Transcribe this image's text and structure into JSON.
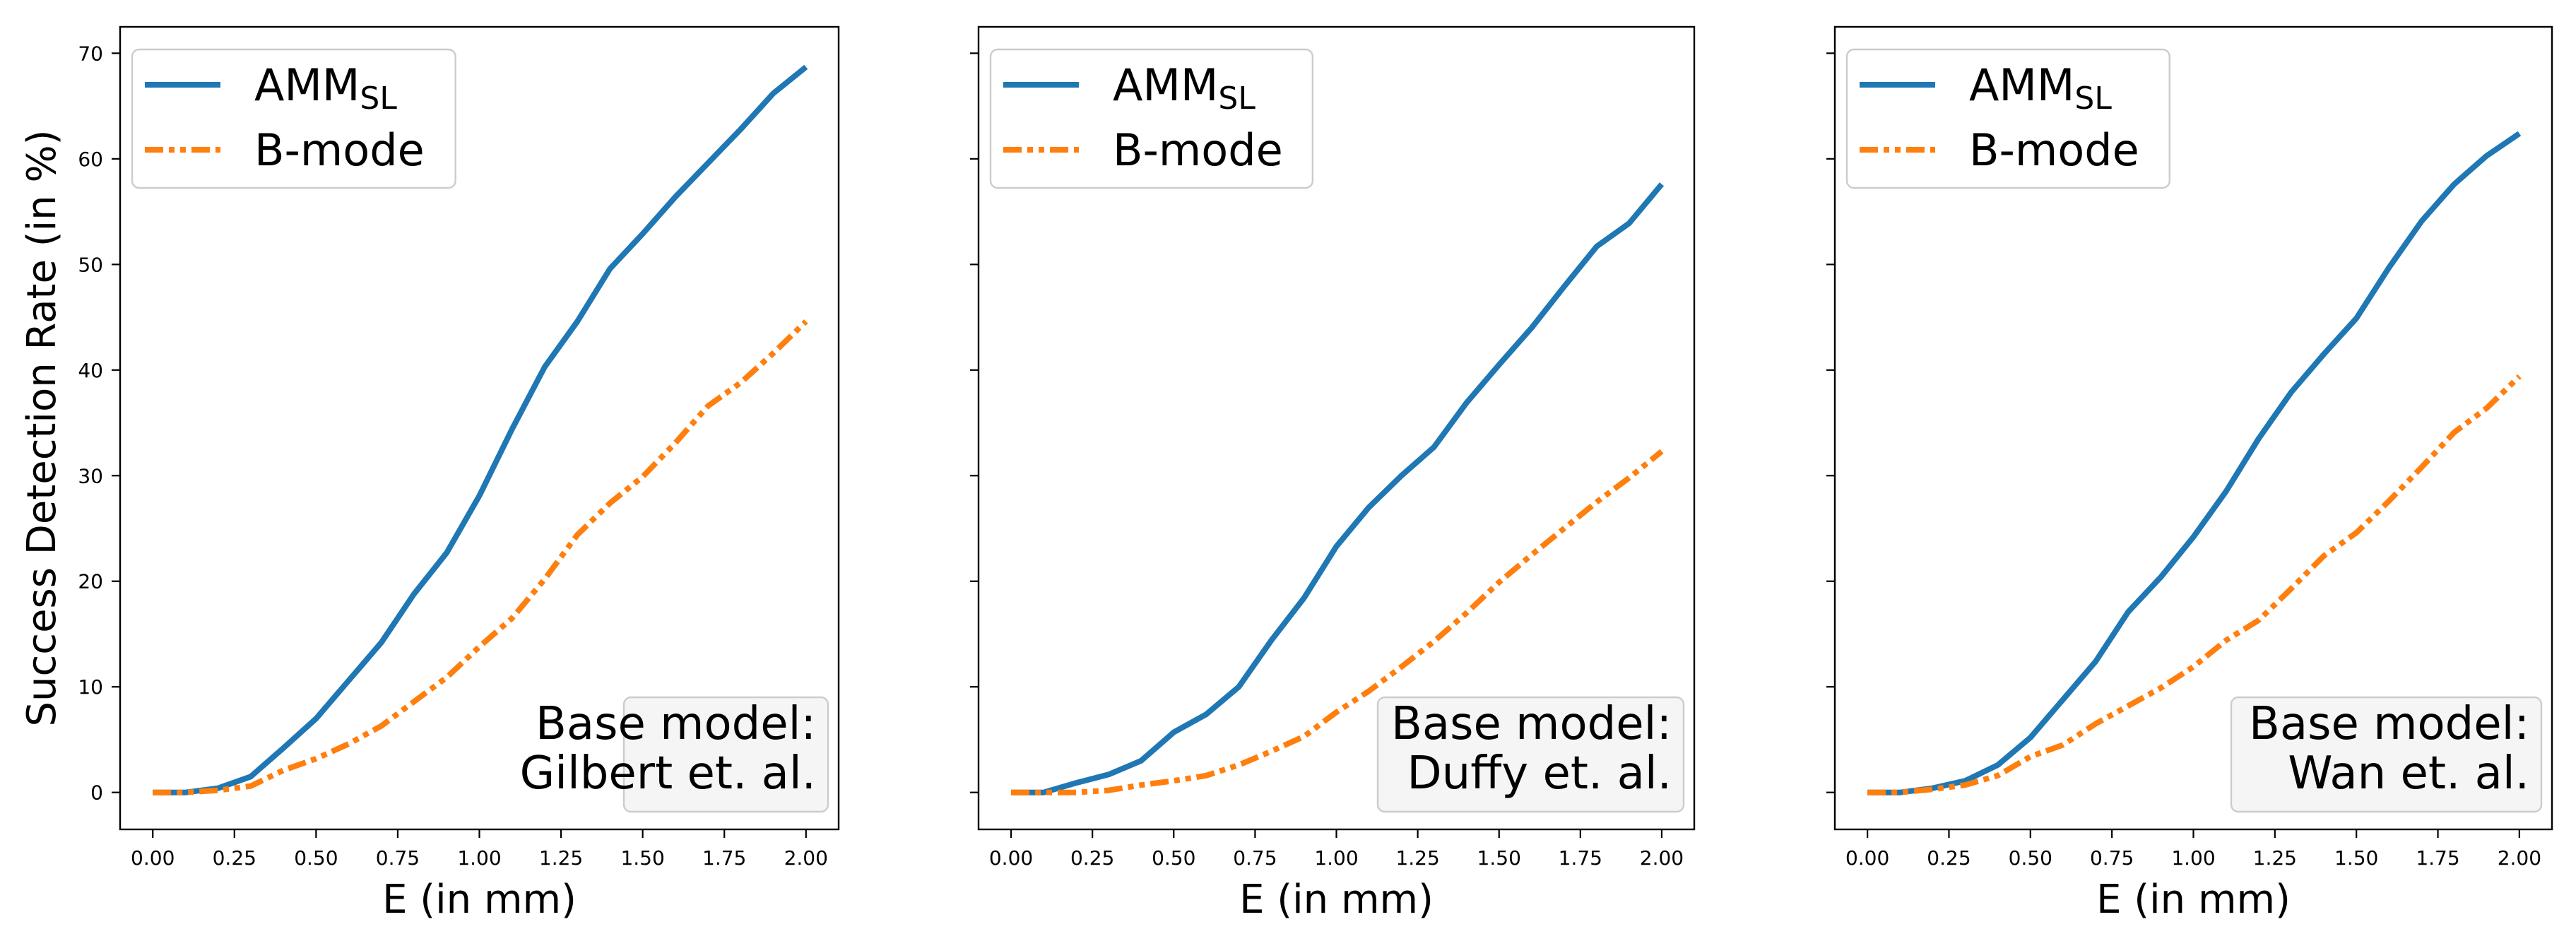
{
  "colors": {
    "amm": "#1f77b4",
    "bmode": "#ff7f0e"
  },
  "chart_data": [
    {
      "type": "line",
      "xlabel": "E (in mm)",
      "ylabel": "Success Detection Rate (in %)",
      "xlim": [
        -0.1,
        2.1
      ],
      "ylim": [
        -3.5,
        72.5
      ],
      "xticks": [
        0,
        0.25,
        0.5,
        0.75,
        1,
        1.25,
        1.5,
        1.75,
        2
      ],
      "xtick_labels": [
        "0.00",
        "0.25",
        "0.50",
        "0.75",
        "1.00",
        "1.25",
        "1.50",
        "1.75",
        "2.00"
      ],
      "yticks": [
        0,
        10,
        20,
        30,
        40,
        50,
        60,
        70
      ],
      "ytick_labels": [
        "0",
        "10",
        "20",
        "30",
        "40",
        "50",
        "60",
        "70"
      ],
      "legend_position": "top-left",
      "annotation": {
        "line1": "Base model:",
        "line2": "Gilbert et. al.",
        "position": "bottom-right"
      },
      "x": [
        0,
        0.1,
        0.2,
        0.3,
        0.4,
        0.5,
        0.6,
        0.7,
        0.8,
        0.9,
        1.0,
        1.1,
        1.2,
        1.3,
        1.4,
        1.5,
        1.6,
        1.7,
        1.8,
        1.9,
        2.0
      ],
      "series": [
        {
          "name": "AMM",
          "name_sub": "SL",
          "style": "solid",
          "values": [
            0,
            0,
            0.4,
            1.5,
            4.2,
            7,
            10.6,
            14.2,
            18.8,
            22.7,
            28.1,
            34.4,
            40.3,
            44.6,
            49.6,
            52.9,
            56.4,
            59.6,
            62.8,
            66.2,
            68.7
          ]
        },
        {
          "name": "B-mode",
          "name_sub": "",
          "style": "dashdot",
          "values": [
            0,
            0,
            0.2,
            0.6,
            2.1,
            3.2,
            4.6,
            6.3,
            8.6,
            10.9,
            13.8,
            16.5,
            20.2,
            24.4,
            27.4,
            29.9,
            33.1,
            36.6,
            38.8,
            41.6,
            44.6
          ]
        }
      ]
    },
    {
      "type": "line",
      "xlabel": "E (in mm)",
      "ylabel": "",
      "xlim": [
        -0.1,
        2.1
      ],
      "ylim": [
        -3.5,
        72.5
      ],
      "xticks": [
        0,
        0.25,
        0.5,
        0.75,
        1,
        1.25,
        1.5,
        1.75,
        2
      ],
      "xtick_labels": [
        "0.00",
        "0.25",
        "0.50",
        "0.75",
        "1.00",
        "1.25",
        "1.50",
        "1.75",
        "2.00"
      ],
      "yticks": [
        0,
        10,
        20,
        30,
        40,
        50,
        60,
        70
      ],
      "ytick_labels": [],
      "legend_position": "top-left",
      "annotation": {
        "line1": "Base model:",
        "line2": "Duffy et. al.",
        "position": "bottom-right"
      },
      "x": [
        0,
        0.1,
        0.2,
        0.3,
        0.4,
        0.5,
        0.6,
        0.7,
        0.8,
        0.9,
        1.0,
        1.1,
        1.2,
        1.3,
        1.4,
        1.5,
        1.6,
        1.7,
        1.8,
        1.9,
        2.0
      ],
      "series": [
        {
          "name": "AMM",
          "name_sub": "SL",
          "style": "solid",
          "values": [
            0,
            0,
            0.9,
            1.7,
            3,
            5.7,
            7.4,
            10,
            14.4,
            18.4,
            23.3,
            27,
            30,
            32.7,
            36.9,
            40.5,
            44,
            47.9,
            51.7,
            53.9,
            57.6
          ]
        },
        {
          "name": "B-mode",
          "name_sub": "",
          "style": "dashdot",
          "values": [
            0,
            0,
            0,
            0.2,
            0.7,
            1.1,
            1.6,
            2.6,
            3.9,
            5.3,
            7.6,
            9.6,
            11.9,
            14.3,
            17,
            19.9,
            22.5,
            25,
            27.5,
            29.8,
            32.3
          ]
        }
      ]
    },
    {
      "type": "line",
      "xlabel": "E (in mm)",
      "ylabel": "",
      "xlim": [
        -0.1,
        2.1
      ],
      "ylim": [
        -3.5,
        72.5
      ],
      "xticks": [
        0,
        0.25,
        0.5,
        0.75,
        1,
        1.25,
        1.5,
        1.75,
        2
      ],
      "xtick_labels": [
        "0.00",
        "0.25",
        "0.50",
        "0.75",
        "1.00",
        "1.25",
        "1.50",
        "1.75",
        "2.00"
      ],
      "yticks": [
        0,
        10,
        20,
        30,
        40,
        50,
        60,
        70
      ],
      "ytick_labels": [],
      "legend_position": "top-left",
      "annotation": {
        "line1": "Base model:",
        "line2": "Wan et. al.",
        "position": "bottom-right"
      },
      "x": [
        0,
        0.1,
        0.2,
        0.3,
        0.4,
        0.5,
        0.6,
        0.7,
        0.8,
        0.9,
        1.0,
        1.1,
        1.2,
        1.3,
        1.4,
        1.5,
        1.6,
        1.7,
        1.8,
        1.9,
        2.0
      ],
      "series": [
        {
          "name": "AMM",
          "name_sub": "SL",
          "style": "solid",
          "values": [
            0,
            0,
            0.4,
            1.1,
            2.6,
            5.2,
            8.8,
            12.4,
            17.1,
            20.4,
            24.2,
            28.5,
            33.5,
            37.9,
            41.5,
            44.9,
            49.7,
            54.1,
            57.6,
            60.3,
            62.4
          ]
        },
        {
          "name": "B-mode",
          "name_sub": "",
          "style": "dashdot",
          "values": [
            0,
            0,
            0.3,
            0.7,
            1.6,
            3.4,
            4.5,
            6.5,
            8.2,
            9.9,
            11.9,
            14.4,
            16.3,
            19.3,
            22.4,
            24.6,
            27.6,
            30.8,
            34.1,
            36.4,
            39.4
          ]
        }
      ]
    }
  ]
}
